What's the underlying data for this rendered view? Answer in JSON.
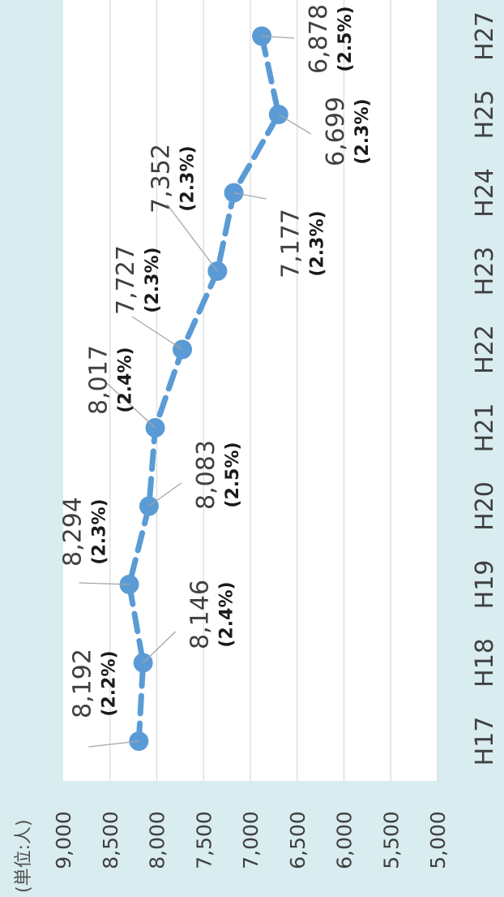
{
  "chart_data": {
    "type": "line",
    "unit_label": "(単位:人)",
    "categories": [
      "H17",
      "H18",
      "H19",
      "H20",
      "H21",
      "H22",
      "H23",
      "H24",
      "H25",
      "H27"
    ],
    "values": [
      8192,
      8146,
      8294,
      8083,
      8017,
      7727,
      7352,
      7177,
      6699,
      6878
    ],
    "value_labels": [
      "8,192",
      "8,146",
      "8,294",
      "8,083",
      "8,017",
      "7,727",
      "7,352",
      "7,177",
      "6,699",
      "6,878"
    ],
    "percent_labels": [
      "(2.2%)",
      "(2.4%)",
      "(2.3%)",
      "(2.5%)",
      "(2.4%)",
      "(2.3%)",
      "(2.3%)",
      "(2.3%)",
      "(2.3%)",
      "(2.5%)"
    ],
    "y_ticks": [
      "9,000",
      "8,500",
      "8,000",
      "7,500",
      "7,000",
      "6,500",
      "6,000",
      "5,500",
      "5,000"
    ],
    "ylim": [
      5000,
      9000
    ],
    "grid": true,
    "line_style": "dashed",
    "series_color": "#5b9bd5"
  }
}
